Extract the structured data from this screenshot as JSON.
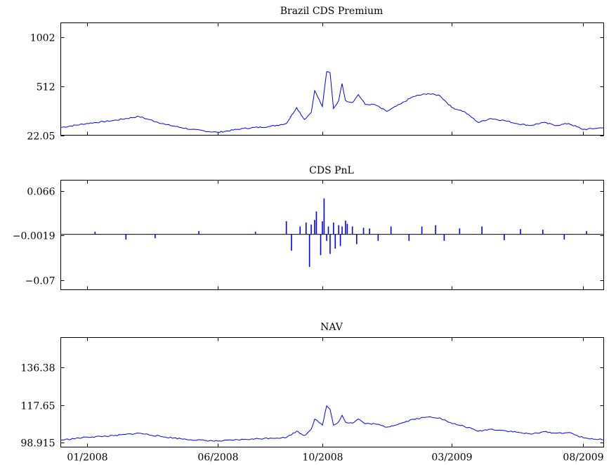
{
  "chart_data": [
    {
      "type": "line",
      "title": "Brazil CDS Premium",
      "xlabel": "",
      "ylabel": "",
      "ylim": [
        22.05,
        1150
      ],
      "yticks": [
        22.05,
        512,
        1002
      ],
      "ytick_labels": [
        "22.05",
        "512",
        "1002"
      ],
      "xlim": [
        "2007-12-01",
        "2009-08-25"
      ],
      "xtick_labels": [
        "01/2008",
        "06/2008",
        "10/2008",
        "03/2009",
        "08/2009"
      ],
      "series": [
        {
          "color": "#0000ff",
          "x": [
            "2007-12-01",
            "2008-01-01",
            "2008-02-01",
            "2008-03-01",
            "2008-04-01",
            "2008-05-01",
            "2008-06-01",
            "2008-07-01",
            "2008-08-01",
            "2008-08-20",
            "2008-09-01",
            "2008-09-10",
            "2008-09-18",
            "2008-09-22",
            "2008-10-01",
            "2008-10-06",
            "2008-10-10",
            "2008-10-14",
            "2008-10-20",
            "2008-10-24",
            "2008-10-28",
            "2008-11-05",
            "2008-11-12",
            "2008-11-20",
            "2008-12-01",
            "2008-12-15",
            "2009-01-01",
            "2009-01-15",
            "2009-02-01",
            "2009-02-15",
            "2009-03-01",
            "2009-03-15",
            "2009-04-01",
            "2009-04-15",
            "2009-05-01",
            "2009-05-15",
            "2009-06-01",
            "2009-06-15",
            "2009-07-01",
            "2009-07-15",
            "2009-08-01",
            "2009-08-15",
            "2009-08-25"
          ],
          "values": [
            100,
            140,
            170,
            210,
            130,
            80,
            50,
            90,
            110,
            140,
            300,
            180,
            250,
            470,
            310,
            660,
            650,
            290,
            370,
            540,
            370,
            350,
            430,
            330,
            330,
            260,
            340,
            410,
            440,
            420,
            300,
            260,
            150,
            190,
            170,
            140,
            120,
            150,
            120,
            140,
            80,
            90,
            100
          ]
        }
      ]
    },
    {
      "type": "bar",
      "title": "CDS PnL",
      "xlabel": "",
      "ylabel": "",
      "ylim": [
        -0.085,
        0.083
      ],
      "yticks": [
        -0.07,
        -0.0019,
        0.066
      ],
      "ytick_labels": [
        "−0.07",
        "−0.0019",
        "0.066"
      ],
      "xlim": [
        "2007-12-01",
        "2009-08-25"
      ],
      "xtick_labels": [
        "01/2008",
        "06/2008",
        "10/2008",
        "03/2009",
        "08/2009"
      ],
      "series": [
        {
          "color": "#0000ff",
          "x": [
            "2008-01-10",
            "2008-02-15",
            "2008-03-20",
            "2008-05-10",
            "2008-07-15",
            "2008-08-20",
            "2008-08-26",
            "2008-09-05",
            "2008-09-12",
            "2008-09-16",
            "2008-09-18",
            "2008-09-22",
            "2008-09-24",
            "2008-09-29",
            "2008-10-01",
            "2008-10-03",
            "2008-10-06",
            "2008-10-08",
            "2008-10-10",
            "2008-10-14",
            "2008-10-16",
            "2008-10-20",
            "2008-10-22",
            "2008-10-24",
            "2008-10-28",
            "2008-10-30",
            "2008-11-05",
            "2008-11-10",
            "2008-11-18",
            "2008-11-25",
            "2008-12-05",
            "2008-12-20",
            "2009-01-10",
            "2009-01-25",
            "2009-02-10",
            "2009-02-20",
            "2009-03-10",
            "2009-04-05",
            "2009-05-01",
            "2009-05-20",
            "2009-06-15",
            "2009-07-10",
            "2009-08-05"
          ],
          "values": [
            0.004,
            -0.008,
            -0.006,
            0.005,
            0.004,
            0.02,
            -0.025,
            0.012,
            0.018,
            -0.05,
            0.015,
            0.022,
            0.035,
            -0.032,
            0.02,
            0.055,
            -0.01,
            0.012,
            -0.03,
            0.018,
            -0.022,
            0.014,
            -0.018,
            0.012,
            0.021,
            0.016,
            0.012,
            -0.015,
            0.01,
            0.009,
            -0.01,
            0.012,
            -0.01,
            0.012,
            0.014,
            -0.01,
            0.009,
            0.012,
            -0.009,
            0.008,
            0.007,
            -0.008,
            0.005
          ]
        }
      ]
    },
    {
      "type": "line",
      "title": "NAV",
      "xlabel": "",
      "ylabel": "",
      "ylim": [
        96.5,
        151.5
      ],
      "yticks": [
        98.915,
        117.65,
        136.38
      ],
      "ytick_labels": [
        "98.915",
        "117.65",
        "136.38"
      ],
      "xlim": [
        "2007-12-01",
        "2009-08-25"
      ],
      "xtick_labels": [
        "01/2008",
        "06/2008",
        "10/2008",
        "03/2009",
        "08/2009"
      ],
      "series": [
        {
          "color": "#0000ff",
          "x": [
            "2007-12-01",
            "2008-01-01",
            "2008-02-01",
            "2008-03-01",
            "2008-04-01",
            "2008-05-01",
            "2008-06-01",
            "2008-07-01",
            "2008-08-01",
            "2008-08-20",
            "2008-09-01",
            "2008-09-10",
            "2008-09-18",
            "2008-09-22",
            "2008-10-01",
            "2008-10-06",
            "2008-10-10",
            "2008-10-14",
            "2008-10-20",
            "2008-10-24",
            "2008-10-28",
            "2008-11-05",
            "2008-11-12",
            "2008-11-20",
            "2008-12-01",
            "2008-12-15",
            "2009-01-01",
            "2009-01-15",
            "2009-02-01",
            "2009-02-15",
            "2009-03-01",
            "2009-03-15",
            "2009-04-01",
            "2009-04-15",
            "2009-05-01",
            "2009-05-15",
            "2009-06-01",
            "2009-06-15",
            "2009-07-01",
            "2009-07-15",
            "2009-08-01",
            "2009-08-15",
            "2009-08-25"
          ],
          "values": [
            100,
            101.5,
            102.2,
            103.5,
            101.5,
            100.2,
            99.5,
            100.3,
            101,
            101.3,
            104.5,
            102.3,
            105.5,
            110.5,
            107.5,
            117.2,
            115.5,
            107.5,
            109.2,
            112.5,
            109,
            108.5,
            110.6,
            108.2,
            108.2,
            106.5,
            108.5,
            110.5,
            111.6,
            111.2,
            108.3,
            107,
            104.5,
            105.5,
            104.8,
            104,
            103,
            104.2,
            103.5,
            103.8,
            101.2,
            100.5,
            100.2
          ]
        }
      ]
    }
  ]
}
